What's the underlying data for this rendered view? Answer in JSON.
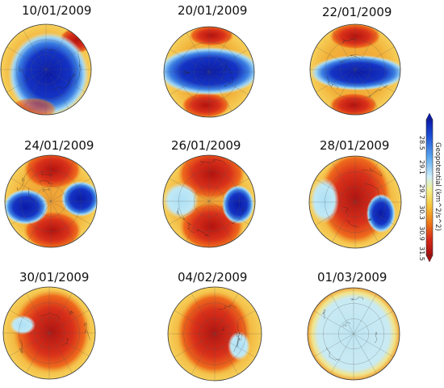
{
  "panels": [
    {
      "date": "10/01/2009"
    },
    {
      "date": "20/01/2009"
    },
    {
      "date": "22/01/2009"
    },
    {
      "date": "24/01/2009"
    },
    {
      "date": "26/01/2009"
    },
    {
      "date": "28/01/2009"
    },
    {
      "date": "30/01/2009"
    },
    {
      "date": "04/02/2009"
    },
    {
      "date": "01/03/2009"
    }
  ],
  "colorbar": {
    "title": "Geopotential (km^2/s^2)",
    "ticks": [
      "28.5",
      "29.1",
      "29.7",
      "30.3",
      "30.9",
      "31.5"
    ],
    "colors": [
      "#0a1aa8",
      "#1d4fd6",
      "#5aa8f0",
      "#cfeefa",
      "#f3f08a",
      "#f6c23a",
      "#ee7a1a",
      "#d62a1a",
      "#a40f0f"
    ]
  }
}
